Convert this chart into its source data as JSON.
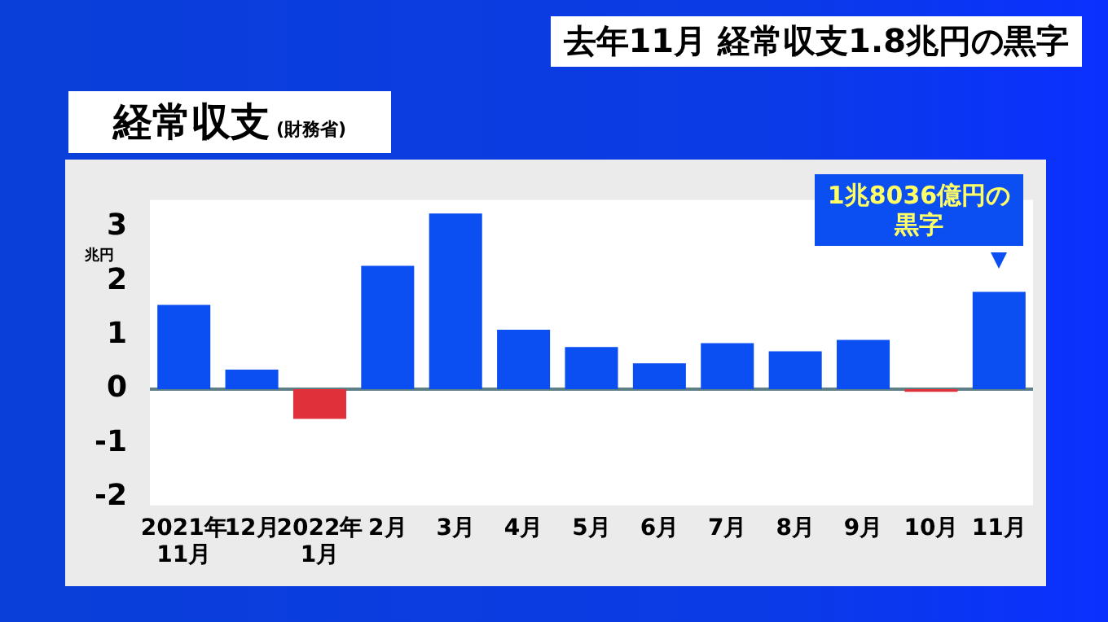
{
  "chart_data": {
    "type": "bar",
    "title": "去年11月 経常収支1.8兆円の黒字",
    "subtitle": "経常収支",
    "ylabel": "兆円",
    "annotations": [
      "(財務省)",
      {
        "text": "1兆8036億円の黒字",
        "x": "11月",
        "y": 1.8
      }
    ],
    "categories": [
      "2021年\n11月",
      "12月",
      "2022年\n1月",
      "2月",
      "3月",
      "4月",
      "5月",
      "6月",
      "7月",
      "8月",
      "9月",
      "10月",
      "11月"
    ],
    "values": [
      1.56,
      0.36,
      -0.55,
      2.28,
      3.25,
      1.1,
      0.78,
      0.48,
      0.85,
      0.7,
      0.91,
      -0.05,
      1.8
    ],
    "colors": [
      "#0b4ff2",
      "#0b4ff2",
      "#e0303a",
      "#0b4ff2",
      "#0b4ff2",
      "#0b4ff2",
      "#0b4ff2",
      "#0b4ff2",
      "#0b4ff2",
      "#0b4ff2",
      "#0b4ff2",
      "#e0303a",
      "#0b4ff2"
    ],
    "ylim": [
      -2.15,
      3.5
    ],
    "yticks": [
      -2,
      -1,
      0,
      1,
      2,
      3
    ],
    "ref_lines": [
      {
        "axis": "y",
        "value": 0,
        "color": "#5f7f86"
      }
    ],
    "grid": false,
    "legend": false
  }
}
